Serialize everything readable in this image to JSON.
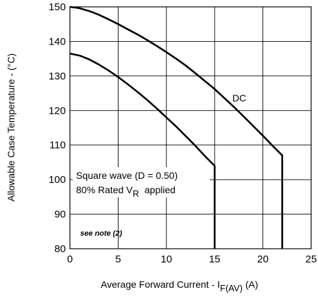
{
  "chart_data": {
    "type": "line",
    "xlabel_main": "Average Forward Current - I",
    "xlabel_sub": "F(AV)",
    "xlabel_unit": "(A)",
    "ylabel": "Allowable Case Temperature - (°C)",
    "xlim": [
      0,
      25
    ],
    "ylim": [
      80,
      150
    ],
    "xticks": [
      "0",
      "5",
      "10",
      "15",
      "20",
      "25"
    ],
    "yticks": [
      "80",
      "90",
      "100",
      "110",
      "120",
      "130",
      "140",
      "150"
    ],
    "grid": true,
    "series": [
      {
        "name": "DC",
        "x": [
          0,
          1,
          2,
          3,
          4,
          5,
          6,
          7,
          8,
          9,
          10,
          11,
          12,
          13,
          14,
          15,
          16,
          17,
          18,
          19,
          20,
          21,
          22,
          22
        ],
        "y": [
          150,
          149.6,
          148.8,
          147.7,
          146.4,
          145,
          143.5,
          142,
          140.4,
          138.7,
          136.9,
          135,
          133,
          130.8,
          128.5,
          126.2,
          123.6,
          121,
          118.3,
          115.5,
          112.7,
          109.8,
          107,
          80
        ]
      },
      {
        "name": "Square wave (D = 0.50)",
        "x": [
          0,
          1,
          2,
          3,
          4,
          5,
          6,
          7,
          8,
          9,
          10,
          11,
          12,
          13,
          14,
          15,
          15
        ],
        "y": [
          136.5,
          135.9,
          134.8,
          133.3,
          131.6,
          129.7,
          127.6,
          125.4,
          123.1,
          120.6,
          118,
          115.4,
          112.6,
          109.8,
          106.8,
          104,
          80
        ]
      }
    ],
    "annotations": {
      "dc_label": "DC",
      "square_line1": "Square wave (D = 0.50)",
      "square_line2_main": "80% Rated V",
      "square_line2_sub": "R",
      "square_line2_tail": "applied",
      "note": "see note (2)"
    }
  }
}
